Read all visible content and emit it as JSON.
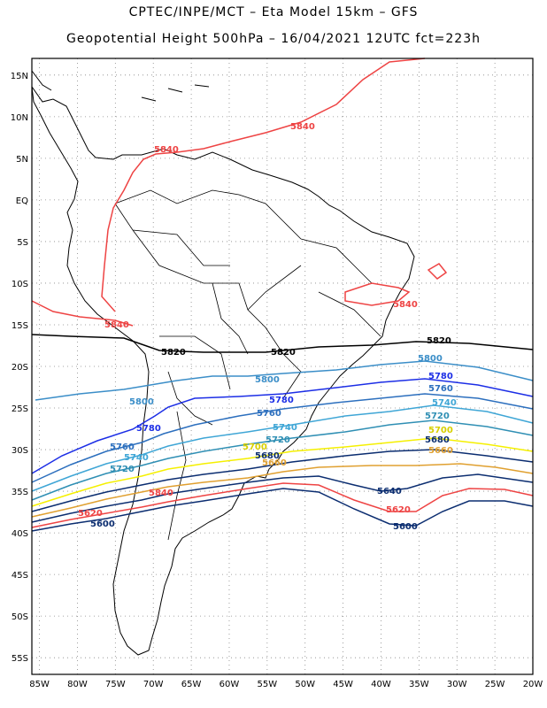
{
  "header": {
    "line1": "CPTEC/INPE/MCT –  Eta Model 15km – GFS",
    "line2": "Geopotential Height 500hPa – 16/04/2021 12UTC fct=223h"
  },
  "axes": {
    "lat_labels": [
      "15N",
      "10N",
      "5N",
      "EQ",
      "5S",
      "10S",
      "15S",
      "20S",
      "25S",
      "30S",
      "35S",
      "40S",
      "45S",
      "50S",
      "55S"
    ],
    "lon_labels": [
      "85W",
      "80W",
      "75W",
      "70W",
      "65W",
      "60W",
      "55W",
      "50W",
      "45W",
      "40W",
      "35W",
      "30W",
      "25W",
      "20W"
    ],
    "lat_range": [
      -57,
      17
    ],
    "lon_range": [
      -86,
      -20
    ]
  },
  "contours": [
    {
      "value": "5840",
      "color": "#ee4444"
    },
    {
      "value": "5820",
      "color": "#000000"
    },
    {
      "value": "5800",
      "color": "#3b8ec8"
    },
    {
      "value": "5780",
      "color": "#1c2ee6"
    },
    {
      "value": "5760",
      "color": "#2c6fbe"
    },
    {
      "value": "5740",
      "color": "#3fa6d6"
    },
    {
      "value": "5720",
      "color": "#2f8fb4"
    },
    {
      "value": "5700",
      "color": "#f5f000"
    },
    {
      "value": "5680",
      "color": "#0b2d70"
    },
    {
      "value": "5660",
      "color": "#e0a030"
    },
    {
      "value": "5640",
      "color": "#0b2d70"
    },
    {
      "value": "5620",
      "color": "#ee4444"
    },
    {
      "value": "5600",
      "color": "#0b2d70"
    }
  ]
}
